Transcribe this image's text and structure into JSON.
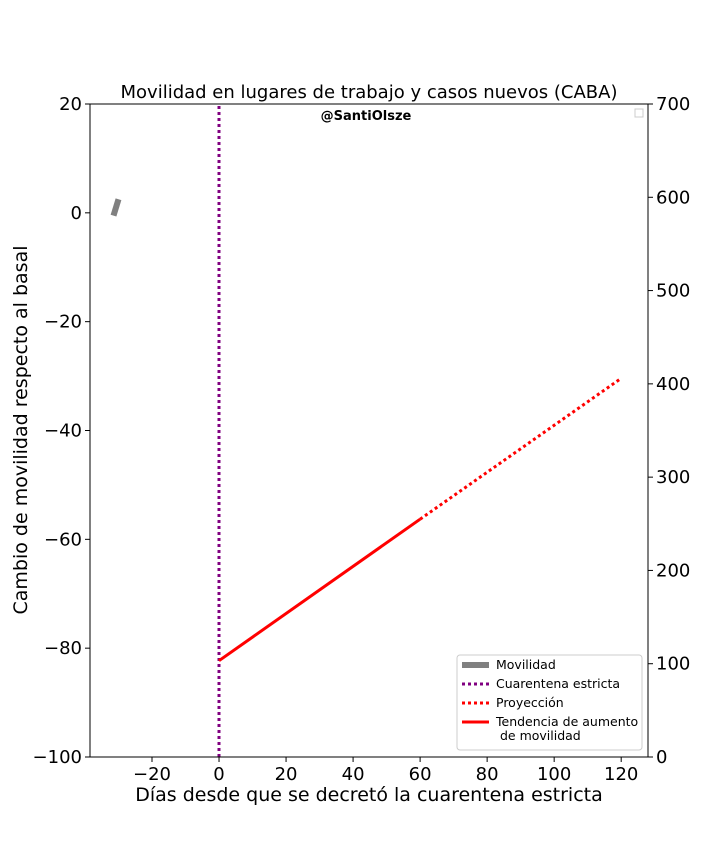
{
  "chart_data": {
    "type": "line",
    "title": "Movilidad en lugares de trabajo y casos nuevos (CABA)",
    "credit": "@SantiOlsze",
    "xlabel": "Días desde que se decretó la cuarentena estricta",
    "ylabel": "Cambio de movilidad respecto al basal",
    "y2label": "",
    "xlim": [
      -38.5,
      128
    ],
    "ylim": [
      -100,
      20
    ],
    "y2lim": [
      0,
      700
    ],
    "x_ticks": [
      -20,
      0,
      20,
      40,
      60,
      80,
      100,
      120
    ],
    "y_ticks": [
      -100,
      -80,
      -60,
      -40,
      -20,
      0,
      20
    ],
    "y2_ticks": [
      0,
      100,
      200,
      300,
      400,
      500,
      600,
      700
    ],
    "x_tick_labels": [
      "−20",
      "0",
      "20",
      "40",
      "60",
      "80",
      "100",
      "120"
    ],
    "y_tick_labels": [
      "−100",
      "−80",
      "−60",
      "−40",
      "−20",
      "0",
      "20"
    ],
    "y2_tick_labels": [
      "0",
      "100",
      "200",
      "300",
      "400",
      "500",
      "600",
      "700"
    ],
    "grid": false,
    "legend_position": "lower right",
    "series": [
      {
        "name": "Movilidad",
        "color": "#808080",
        "style": "solid-thick",
        "x": [
          -31.5,
          -30
        ],
        "y": [
          -0.5,
          2.5
        ]
      },
      {
        "name": "Cuarentena estricta",
        "color": "#800080",
        "style": "dotted",
        "x": [
          0,
          0
        ],
        "y": [
          -100,
          20
        ]
      },
      {
        "name": "Proyección",
        "color": "#ff0000",
        "style": "dotted",
        "x": [
          60,
          120
        ],
        "y": [
          -56.3,
          -30.4
        ]
      },
      {
        "name": "Tendencia de aumento\n de movilidad",
        "color": "#ff0000",
        "style": "solid",
        "x": [
          0,
          60
        ],
        "y": [
          -82.3,
          -56.3
        ]
      }
    ]
  }
}
